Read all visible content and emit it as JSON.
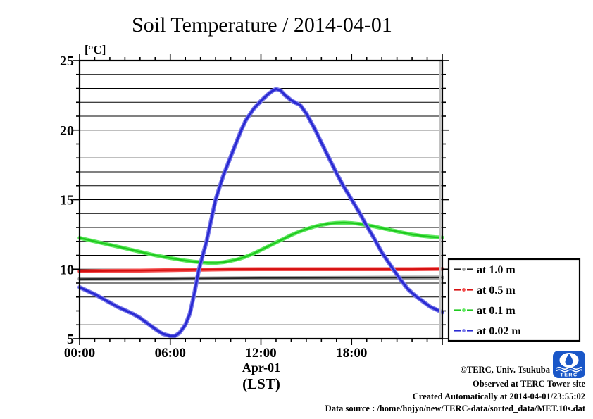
{
  "title": "Soil Temperature / 2014-04-01",
  "y_axis": {
    "unit_label": "[°C]",
    "tick_values": [
      5,
      10,
      15,
      20,
      25
    ],
    "range": [
      5,
      25
    ],
    "minor_step": 1
  },
  "x_axis": {
    "ticks": [
      {
        "hour": 0,
        "label": "00:00"
      },
      {
        "hour": 6,
        "label": "06:00"
      },
      {
        "hour": 12,
        "label": "12:00"
      },
      {
        "hour": 18,
        "label": "18:00"
      }
    ],
    "range_hours": [
      0,
      24
    ],
    "major_step_hours": 6,
    "minor_step_hours": 1,
    "date_label": "Apr-01",
    "timezone_label": "(LST)"
  },
  "legend": {
    "items": [
      {
        "label": "at 1.0 m",
        "dash_color": "#222222",
        "dot_color": "#9c9c9c"
      },
      {
        "label": "at 0.5 m",
        "dash_color": "#d51111",
        "dot_color": "#f34c4c"
      },
      {
        "label": "at 0.1 m",
        "dash_color": "#1ec91e",
        "dot_color": "#5fe85f"
      },
      {
        "label": "at 0.02 m",
        "dash_color": "#2a2ad2",
        "dot_color": "#7b7bea"
      }
    ]
  },
  "footer": {
    "lines": [
      "©TERC, Univ. Tsukuba",
      "Observed at TERC Tower site",
      "Created Automatically at 2014-04-01/23:55:02",
      "Data source : /home/hojyo/new/TERC-data/sorted_data/MET.10s.dat"
    ]
  },
  "logo": {
    "label": "TERC",
    "color": "#1a57c8"
  },
  "chart_data": {
    "type": "line",
    "title": "Soil Temperature / 2014-04-01",
    "xlabel": "Apr-01 (LST)",
    "ylabel": "[°C]",
    "x_unit": "hours LST",
    "xlim_hours": [
      0,
      24
    ],
    "ylim": [
      5,
      25
    ],
    "grid": "horizontal lines every 1 °C",
    "legend_position": "outside right, lower",
    "series": [
      {
        "name": "at 1.0 m",
        "depth_m": 1.0,
        "halo": "#9c9c9c",
        "core": "#222222",
        "halo_width": 5.5,
        "core_width": 1.8,
        "points": [
          [
            0,
            9.3
          ],
          [
            3,
            9.31
          ],
          [
            6,
            9.32
          ],
          [
            9,
            9.34
          ],
          [
            12,
            9.36
          ],
          [
            15,
            9.37
          ],
          [
            18,
            9.38
          ],
          [
            21,
            9.39
          ],
          [
            24,
            9.4
          ]
        ]
      },
      {
        "name": "at 0.5 m",
        "depth_m": 0.5,
        "halo": "#f34c4c",
        "core": "#d51111",
        "halo_width": 5.5,
        "core_width": 2.4,
        "points": [
          [
            0,
            9.85
          ],
          [
            2,
            9.88
          ],
          [
            4,
            9.9
          ],
          [
            6,
            9.93
          ],
          [
            8,
            9.96
          ],
          [
            10,
            9.99
          ],
          [
            12,
            10.0
          ],
          [
            14,
            10.0
          ],
          [
            16,
            10.0
          ],
          [
            18,
            10.0
          ],
          [
            20,
            10.0
          ],
          [
            22,
            10.0
          ],
          [
            24,
            10.02
          ]
        ]
      },
      {
        "name": "at 0.1 m",
        "depth_m": 0.1,
        "halo": "#5fe85f",
        "core": "#1ec91e",
        "halo_width": 5.5,
        "core_width": 2.4,
        "points": [
          [
            0,
            12.25
          ],
          [
            1,
            12.0
          ],
          [
            2,
            11.75
          ],
          [
            3,
            11.5
          ],
          [
            4,
            11.25
          ],
          [
            5,
            11.0
          ],
          [
            6,
            10.8
          ],
          [
            7,
            10.62
          ],
          [
            7.5,
            10.55
          ],
          [
            8,
            10.5
          ],
          [
            8.5,
            10.46
          ],
          [
            9,
            10.45
          ],
          [
            9.5,
            10.5
          ],
          [
            10,
            10.6
          ],
          [
            10.5,
            10.72
          ],
          [
            11,
            10.9
          ],
          [
            11.5,
            11.12
          ],
          [
            12,
            11.38
          ],
          [
            12.5,
            11.65
          ],
          [
            13,
            11.92
          ],
          [
            13.5,
            12.18
          ],
          [
            14,
            12.45
          ],
          [
            14.5,
            12.68
          ],
          [
            15,
            12.88
          ],
          [
            15.5,
            13.05
          ],
          [
            16,
            13.18
          ],
          [
            16.5,
            13.28
          ],
          [
            17,
            13.33
          ],
          [
            17.5,
            13.35
          ],
          [
            18,
            13.32
          ],
          [
            18.5,
            13.26
          ],
          [
            19,
            13.17
          ],
          [
            19.5,
            13.07
          ],
          [
            20,
            12.95
          ],
          [
            20.5,
            12.84
          ],
          [
            21,
            12.72
          ],
          [
            21.5,
            12.6
          ],
          [
            22,
            12.5
          ],
          [
            22.5,
            12.42
          ],
          [
            23,
            12.35
          ],
          [
            23.5,
            12.3
          ],
          [
            24,
            12.27
          ]
        ]
      },
      {
        "name": "at 0.02 m",
        "depth_m": 0.02,
        "halo": "#7b7bea",
        "core": "#2a2ad2",
        "halo_width": 6,
        "core_width": 3.2,
        "points": [
          [
            0,
            8.7
          ],
          [
            0.5,
            8.45
          ],
          [
            1,
            8.2
          ],
          [
            1.5,
            7.9
          ],
          [
            2,
            7.6
          ],
          [
            2.5,
            7.3
          ],
          [
            3,
            7.05
          ],
          [
            3.5,
            6.8
          ],
          [
            4,
            6.5
          ],
          [
            4.5,
            6.1
          ],
          [
            5,
            5.7
          ],
          [
            5.5,
            5.35
          ],
          [
            6,
            5.2
          ],
          [
            6.3,
            5.2
          ],
          [
            6.6,
            5.4
          ],
          [
            7,
            6.0
          ],
          [
            7.3,
            6.8
          ],
          [
            7.6,
            8.3
          ],
          [
            7.9,
            10.0
          ],
          [
            8.4,
            12.0
          ],
          [
            9,
            15.0
          ],
          [
            9.5,
            16.7
          ],
          [
            10,
            18.1
          ],
          [
            10.4,
            19.2
          ],
          [
            10.7,
            20.0
          ],
          [
            11,
            20.7
          ],
          [
            11.5,
            21.5
          ],
          [
            12,
            22.1
          ],
          [
            12.5,
            22.6
          ],
          [
            12.8,
            22.85
          ],
          [
            13,
            22.95
          ],
          [
            13.3,
            22.85
          ],
          [
            13.6,
            22.5
          ],
          [
            14,
            22.15
          ],
          [
            14.3,
            21.95
          ],
          [
            14.6,
            21.8
          ],
          [
            15,
            21.2
          ],
          [
            15.6,
            20.0
          ],
          [
            16,
            19.1
          ],
          [
            16.5,
            18.0
          ],
          [
            17,
            16.9
          ],
          [
            17.5,
            15.9
          ],
          [
            18,
            15.0
          ],
          [
            18.5,
            14.1
          ],
          [
            18.9,
            13.3
          ],
          [
            19.5,
            12.2
          ],
          [
            20,
            11.2
          ],
          [
            20.75,
            10.0
          ],
          [
            21.2,
            9.3
          ],
          [
            21.7,
            8.6
          ],
          [
            22.2,
            8.1
          ],
          [
            22.7,
            7.7
          ],
          [
            23.2,
            7.3
          ],
          [
            23.6,
            7.1
          ],
          [
            24,
            6.9
          ]
        ]
      }
    ]
  }
}
